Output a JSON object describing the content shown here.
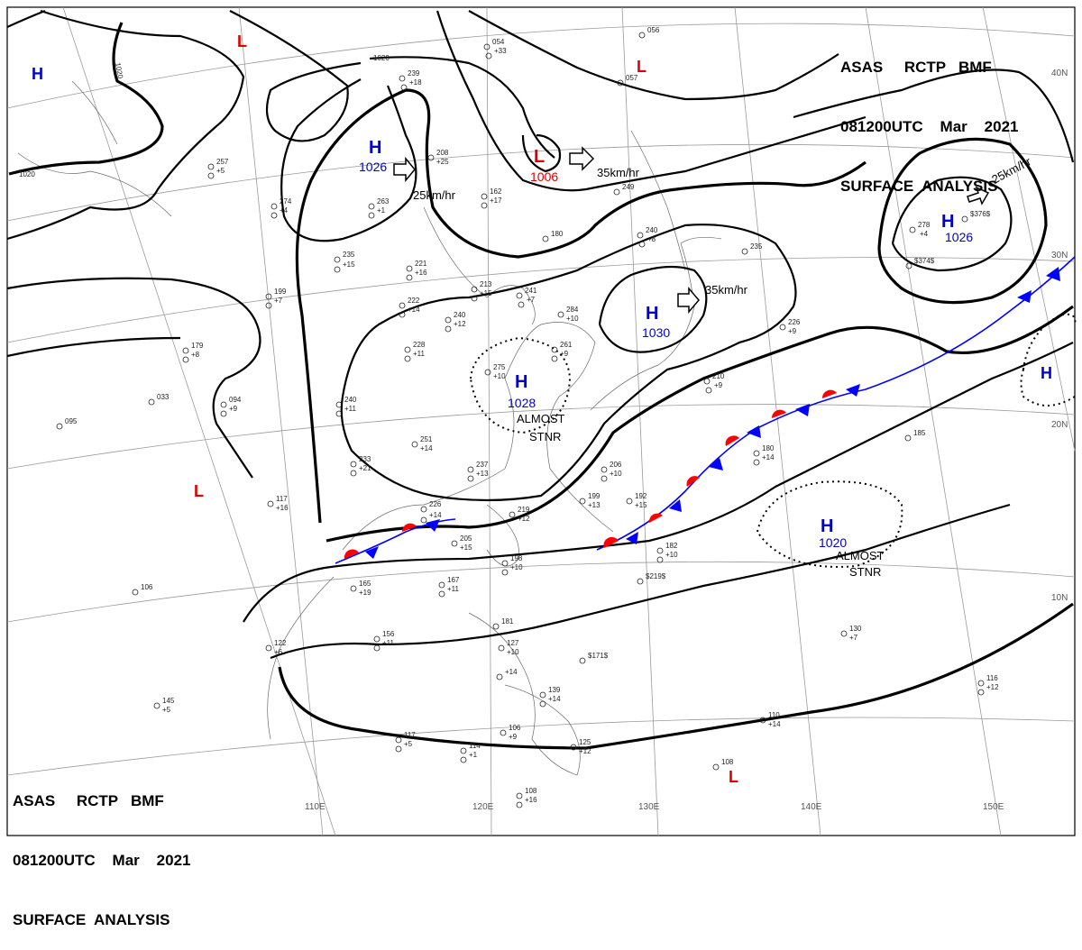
{
  "header_top": {
    "line1": "ASAS     RCTP   BMF",
    "line2": "081200UTC    Mar    2021",
    "line3": "SURFACE  ANALYSIS"
  },
  "header_bottom": {
    "line1": "ASAS     RCTP   BMF",
    "line2": "081200UTC    Mar    2021",
    "line3": "SURFACE  ANALYSIS"
  },
  "pressure_systems": [
    {
      "type": "H",
      "pressure": "1026",
      "color": "#0000cc"
    },
    {
      "type": "H",
      "pressure": "1030",
      "color": "#0000cc"
    },
    {
      "type": "H",
      "pressure": "1028",
      "color": "#0000cc",
      "note_line1": "ALMOST",
      "note_line2": "STNR"
    },
    {
      "type": "H",
      "pressure": "1026",
      "color": "#0000cc"
    },
    {
      "type": "H",
      "pressure": "1020",
      "color": "#0000cc",
      "note_line1": "ALMOST",
      "note_line2": "STNR"
    },
    {
      "type": "H",
      "pressure": "",
      "color": "#0000cc"
    },
    {
      "type": "H",
      "pressure": "",
      "color": "#0000cc"
    },
    {
      "type": "L",
      "pressure": "1006",
      "color": "#dd0000"
    },
    {
      "type": "L",
      "pressure": "",
      "color": "#dd0000"
    },
    {
      "type": "L",
      "pressure": "",
      "color": "#dd0000"
    },
    {
      "type": "L",
      "pressure": "",
      "color": "#dd0000"
    },
    {
      "type": "L",
      "pressure": "",
      "color": "#dd0000"
    }
  ],
  "movement_labels": [
    "25km/hr",
    "35km/hr",
    "35km/hr",
    "25km/hr"
  ],
  "isobar_labels": [
    "1020",
    "1020",
    "1020"
  ],
  "grid_labels": {
    "longitudes": [
      "110E",
      "120E",
      "130E",
      "140E",
      "150E"
    ],
    "latitudes": [
      "40N",
      "30N",
      "20N",
      "10N"
    ]
  },
  "station_values": [
    "054",
    "+33",
    "056",
    "057",
    "239",
    "+18",
    "208",
    "+25",
    "257",
    "+5",
    "274",
    "+4",
    "263",
    "+1",
    "235",
    "+15",
    "221",
    "+16",
    "222",
    "+14",
    "162",
    "+17",
    "180",
    "249",
    "240",
    "+8",
    "213",
    "+15",
    "241",
    "+7",
    "235",
    "278",
    "+4",
    "199",
    "+7",
    "179",
    "+8",
    "228",
    "+11",
    "240",
    "+12",
    "275",
    "+10",
    "261",
    "+9",
    "284",
    "+10",
    "210",
    "+9",
    "226",
    "+9",
    "094",
    "+9",
    "033",
    "095",
    "240",
    "+11",
    "251",
    "+14",
    "233",
    "+21",
    "237",
    "+13",
    "206",
    "+10",
    "199",
    "+13",
    "192",
    "+15",
    "180",
    "+14",
    "185",
    "117",
    "+16",
    "226",
    "+14",
    "219",
    "+12",
    "205",
    "+15",
    "198",
    "+10",
    "182",
    "+10",
    "167",
    "+11",
    "165",
    "+19",
    "106",
    "156",
    "+11",
    "122",
    "+6",
    "181",
    "127",
    "+10",
    "+14",
    "139",
    "+14",
    "125",
    "+12",
    "114",
    "+1",
    "106",
    "+9",
    "117",
    "+5",
    "108",
    "+16",
    "145",
    "+5",
    "130",
    "+7",
    "116",
    "+12",
    "110",
    "+14",
    "108",
    "$171$",
    "$219$",
    "$374$",
    "$376$"
  ]
}
